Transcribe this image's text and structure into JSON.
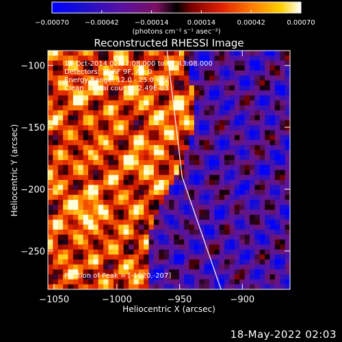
{
  "chart_data": {
    "type": "heatmap",
    "title": "Reconstructed RHESSI Image",
    "xlabel": "Heliocentric X (arcsec)",
    "ylabel": "Heliocentric Y (arcsec)",
    "xlim": [
      -1055,
      -862
    ],
    "ylim": [
      -281,
      -88
    ],
    "xticks": [
      -1050,
      -1000,
      -950,
      -900
    ],
    "yticks": [
      -100,
      -150,
      -200,
      -250
    ],
    "info_lines": [
      "12-Oct-2014 02:37:08.000 to 02:43:08.000",
      "Detectors: 3F 6F 9F, Att 0",
      "Energy Range: 12.0 - 25.0 keV",
      "Clean    Total counts: 2.49E-03"
    ],
    "peak_label": "Position of Peak = [-1020,-207]",
    "peak_position": [
      -1020,
      -207
    ],
    "colorbar": {
      "min": -0.0007,
      "max": 0.0007,
      "ticks": [
        "-0.00070",
        "-0.00042",
        "-0.00014",
        "0.00014",
        "0.00042",
        "0.00070"
      ],
      "units_label": "(photons cm⁻² s⁻¹ asec⁻²)"
    },
    "limb_line": [
      [
        -960,
        -88
      ],
      [
        -948,
        -190
      ],
      [
        -917,
        -281
      ]
    ]
  },
  "footer_date": "18-May-2022 02:03",
  "colors": {
    "background": "#000000",
    "text": "#ffffff",
    "limb": "#ffffff"
  }
}
